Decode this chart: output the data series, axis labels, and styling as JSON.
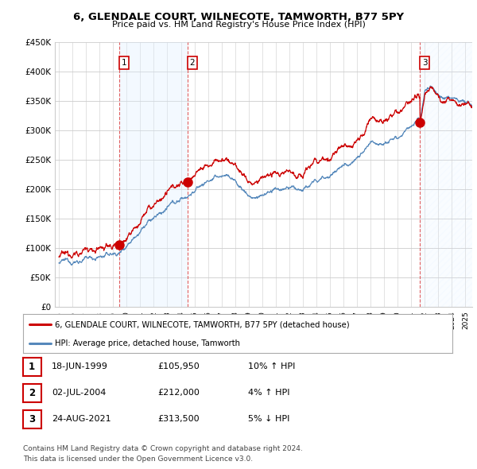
{
  "title": "6, GLENDALE COURT, WILNECOTE, TAMWORTH, B77 5PY",
  "subtitle": "Price paid vs. HM Land Registry's House Price Index (HPI)",
  "ylim": [
    0,
    450000
  ],
  "yticks": [
    0,
    50000,
    100000,
    150000,
    200000,
    250000,
    300000,
    350000,
    400000,
    450000
  ],
  "ytick_labels": [
    "£0",
    "£50K",
    "£100K",
    "£150K",
    "£200K",
    "£250K",
    "£300K",
    "£350K",
    "£400K",
    "£450K"
  ],
  "xmin": 1995.0,
  "xmax": 2025.5,
  "sale_dates": [
    1999.46,
    2004.5,
    2021.65
  ],
  "sale_prices": [
    105950,
    212000,
    313500
  ],
  "sale_labels": [
    "1",
    "2",
    "3"
  ],
  "legend_line1": "6, GLENDALE COURT, WILNECOTE, TAMWORTH, B77 5PY (detached house)",
  "legend_line2": "HPI: Average price, detached house, Tamworth",
  "table_rows": [
    [
      "1",
      "18-JUN-1999",
      "£105,950",
      "10% ↑ HPI"
    ],
    [
      "2",
      "02-JUL-2004",
      "£212,000",
      "4% ↑ HPI"
    ],
    [
      "3",
      "24-AUG-2021",
      "£313,500",
      "5% ↓ HPI"
    ]
  ],
  "footnote1": "Contains HM Land Registry data © Crown copyright and database right 2024.",
  "footnote2": "This data is licensed under the Open Government Licence v3.0.",
  "line_color_red": "#cc0000",
  "line_color_blue": "#5588bb",
  "fill_color_blue": "#ddeeff",
  "dashed_color": "#dd4444",
  "background_color": "#ffffff",
  "grid_color": "#cccccc"
}
